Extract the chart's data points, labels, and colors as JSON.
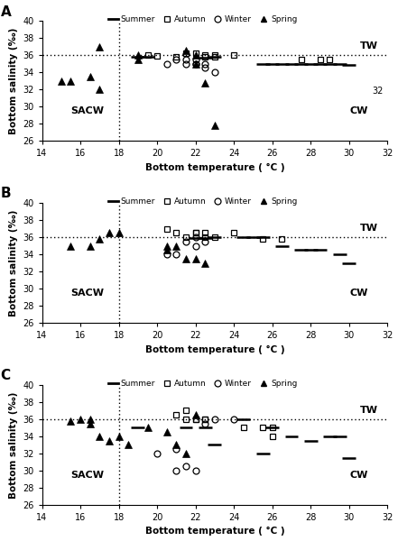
{
  "panels": [
    "A",
    "B",
    "C"
  ],
  "xlim": [
    14,
    32
  ],
  "ylim": [
    26,
    40
  ],
  "xticks": [
    14,
    16,
    18,
    20,
    22,
    24,
    26,
    28,
    30,
    32
  ],
  "yticks": [
    26,
    28,
    30,
    32,
    34,
    36,
    38,
    40
  ],
  "xlabel": "Bottom temperature ( °C )",
  "ylabel": "Bottom salinity (‰)",
  "hline_sal": 36,
  "vline_temp": 18,
  "TW_label": "TW",
  "CW_label": "CW",
  "SACW_label": "SACW",
  "A": {
    "summer": {
      "temp": [
        19.0,
        19.5,
        22.5,
        23.0,
        25.5,
        26.0,
        26.5,
        27.0,
        27.5,
        28.0,
        28.5,
        29.0,
        29.5,
        30.0
      ],
      "sal": [
        35.8,
        35.8,
        35.7,
        35.8,
        35.0,
        35.0,
        35.0,
        35.0,
        35.0,
        35.0,
        35.0,
        35.0,
        35.0,
        34.9
      ]
    },
    "autumn": {
      "temp": [
        19.5,
        20.0,
        21.0,
        21.5,
        22.0,
        22.5,
        22.5,
        23.0,
        23.0,
        24.0,
        27.5,
        28.5,
        29.0
      ],
      "sal": [
        36.0,
        35.9,
        35.8,
        36.2,
        36.2,
        36.0,
        35.8,
        35.8,
        36.0,
        36.0,
        35.5,
        35.5,
        35.5
      ]
    },
    "winter": {
      "temp": [
        20.5,
        21.0,
        21.5,
        21.5,
        22.0,
        22.0,
        22.0,
        22.5,
        22.5,
        23.0
      ],
      "sal": [
        35.0,
        35.5,
        35.0,
        35.5,
        35.0,
        35.5,
        35.0,
        35.0,
        34.5,
        34.0
      ]
    },
    "spring": {
      "temp": [
        15.0,
        15.5,
        16.5,
        17.0,
        17.0,
        19.0,
        19.0,
        21.5,
        22.0,
        22.0,
        22.5,
        23.0
      ],
      "sal": [
        33.0,
        33.0,
        33.5,
        37.0,
        32.0,
        36.0,
        35.5,
        36.5,
        35.0,
        36.0,
        32.8,
        27.8
      ]
    }
  },
  "B": {
    "summer": {
      "temp": [
        22.0,
        22.5,
        23.0,
        24.5,
        25.0,
        25.5,
        26.5,
        27.5,
        28.0,
        28.5,
        29.5,
        30.0
      ],
      "sal": [
        35.9,
        35.9,
        36.0,
        36.0,
        36.0,
        36.0,
        35.0,
        34.5,
        34.5,
        34.5,
        34.0,
        33.0
      ]
    },
    "autumn": {
      "temp": [
        20.5,
        21.0,
        21.5,
        22.0,
        22.0,
        22.5,
        22.5,
        23.0,
        24.0,
        25.5,
        26.5
      ],
      "sal": [
        37.0,
        36.5,
        36.0,
        36.5,
        36.5,
        36.5,
        36.0,
        36.0,
        36.5,
        35.8,
        35.8
      ]
    },
    "winter": {
      "temp": [
        20.5,
        21.0,
        21.5,
        22.0,
        22.0,
        22.5
      ],
      "sal": [
        34.0,
        34.0,
        35.5,
        36.0,
        35.0,
        35.5
      ]
    },
    "spring": {
      "temp": [
        15.5,
        16.5,
        17.0,
        17.5,
        18.0,
        20.5,
        20.5,
        21.0,
        21.5,
        22.0,
        22.5
      ],
      "sal": [
        35.0,
        35.0,
        35.8,
        36.5,
        36.5,
        35.0,
        34.5,
        35.0,
        33.5,
        33.5,
        33.0
      ]
    }
  },
  "C": {
    "summer": {
      "temp": [
        19.0,
        21.5,
        22.5,
        23.0,
        24.5,
        25.5,
        26.0,
        27.0,
        28.0,
        29.0,
        29.5,
        30.0
      ],
      "sal": [
        35.0,
        35.0,
        35.0,
        33.0,
        36.0,
        32.0,
        35.0,
        34.0,
        33.5,
        34.0,
        34.0,
        31.5
      ]
    },
    "autumn": {
      "temp": [
        21.0,
        21.5,
        21.5,
        22.0,
        22.0,
        22.5,
        22.5,
        24.5,
        25.5,
        26.0,
        26.0
      ],
      "sal": [
        36.5,
        37.0,
        36.0,
        36.0,
        36.0,
        36.0,
        36.0,
        35.0,
        35.0,
        35.0,
        34.0
      ]
    },
    "winter": {
      "temp": [
        20.0,
        21.0,
        21.0,
        21.5,
        22.0,
        22.5,
        23.0,
        24.0
      ],
      "sal": [
        32.0,
        32.5,
        30.0,
        30.5,
        30.0,
        35.5,
        36.0,
        36.0
      ]
    },
    "spring": {
      "temp": [
        15.5,
        16.0,
        16.5,
        16.5,
        17.0,
        17.5,
        18.0,
        18.5,
        19.5,
        20.5,
        21.0,
        21.5,
        22.0
      ],
      "sal": [
        35.8,
        36.0,
        36.0,
        35.5,
        34.0,
        33.5,
        34.0,
        33.0,
        35.0,
        34.5,
        33.0,
        32.0,
        36.5
      ]
    }
  },
  "bg_color": "#ffffff"
}
